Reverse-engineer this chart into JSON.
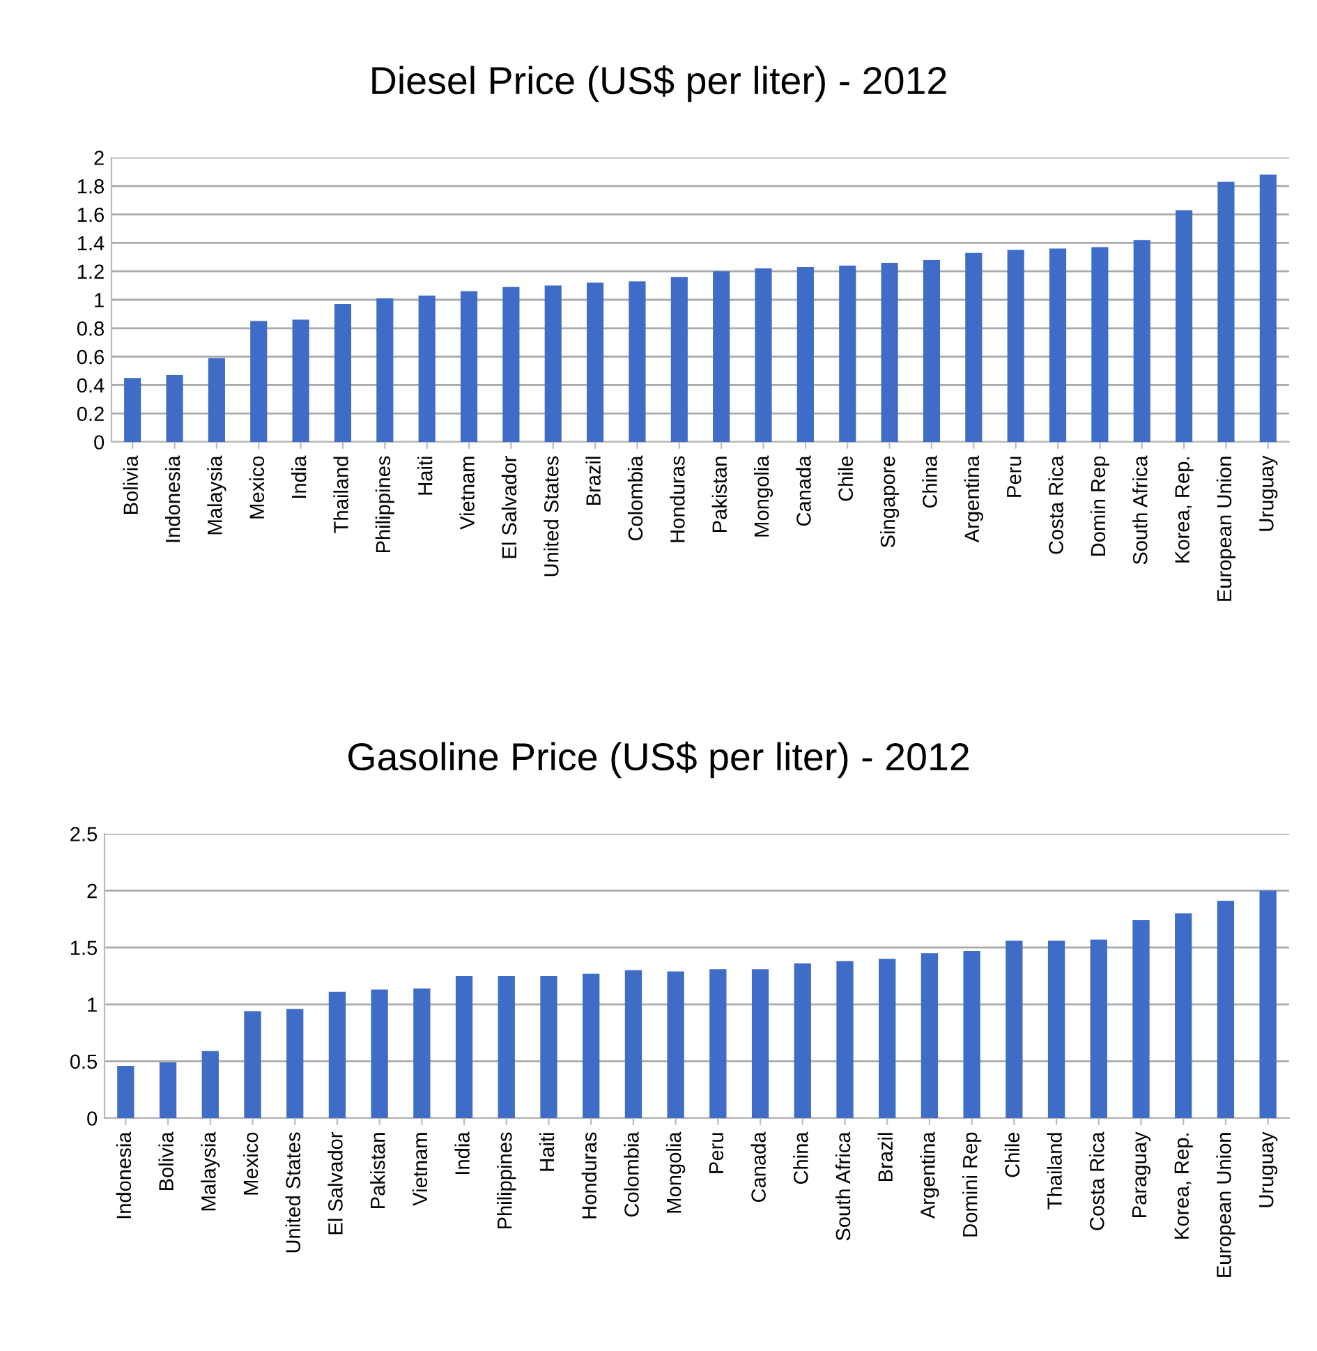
{
  "chart_data": [
    {
      "type": "bar",
      "title": "Diesel Price (US$ per liter) - 2012",
      "categories": [
        "Bolivia",
        "Indonesia",
        "Malaysia",
        "Mexico",
        "India",
        "Thailand",
        "Philippines",
        "Haiti",
        "Vietnam",
        "El Salvador",
        "United States",
        "Brazil",
        "Colombia",
        "Honduras",
        "Pakistan",
        "Mongolia",
        "Canada",
        "Chile",
        "Singapore",
        "China",
        "Argentina",
        "Peru",
        "Costa Rica",
        "Domin Rep",
        "South Africa",
        "Korea, Rep.",
        "European Union",
        "Uruguay"
      ],
      "values": [
        0.45,
        0.47,
        0.59,
        0.85,
        0.86,
        0.97,
        1.01,
        1.03,
        1.06,
        1.09,
        1.1,
        1.12,
        1.13,
        1.16,
        1.2,
        1.22,
        1.23,
        1.24,
        1.26,
        1.28,
        1.33,
        1.35,
        1.36,
        1.37,
        1.42,
        1.63,
        1.83,
        1.88
      ],
      "color": "#3f6cc6",
      "ylim": [
        0,
        2
      ],
      "yticks": [
        0,
        0.2,
        0.4,
        0.6,
        0.8,
        1,
        1.2,
        1.4,
        1.6,
        1.8,
        2
      ],
      "grid": "y"
    },
    {
      "type": "bar",
      "title": "Gasoline Price (US$ per liter) - 2012",
      "categories": [
        "Indonesia",
        "Bolivia",
        "Malaysia",
        "Mexico",
        "United States",
        "El Salvador",
        "Pakistan",
        "Vietnam",
        "India",
        "Philippines",
        "Haiti",
        "Honduras",
        "Colombia",
        "Mongolia",
        "Peru",
        "Canada",
        "China",
        "South Africa",
        "Brazil",
        "Argentina",
        "Domini Rep",
        "Chile",
        "Thailand",
        "Costa Rica",
        "Paraguay",
        "Korea, Rep.",
        "European Union",
        "Uruguay"
      ],
      "values": [
        0.46,
        0.49,
        0.59,
        0.94,
        0.96,
        1.11,
        1.13,
        1.14,
        1.25,
        1.25,
        1.25,
        1.27,
        1.3,
        1.29,
        1.31,
        1.31,
        1.36,
        1.38,
        1.4,
        1.45,
        1.47,
        1.56,
        1.56,
        1.57,
        1.74,
        1.8,
        1.91,
        2.0
      ],
      "color": "#3f6cc6",
      "ylim": [
        0,
        2.5
      ],
      "yticks": [
        0,
        0.5,
        1,
        1.5,
        2,
        2.5
      ],
      "grid": "y"
    }
  ]
}
